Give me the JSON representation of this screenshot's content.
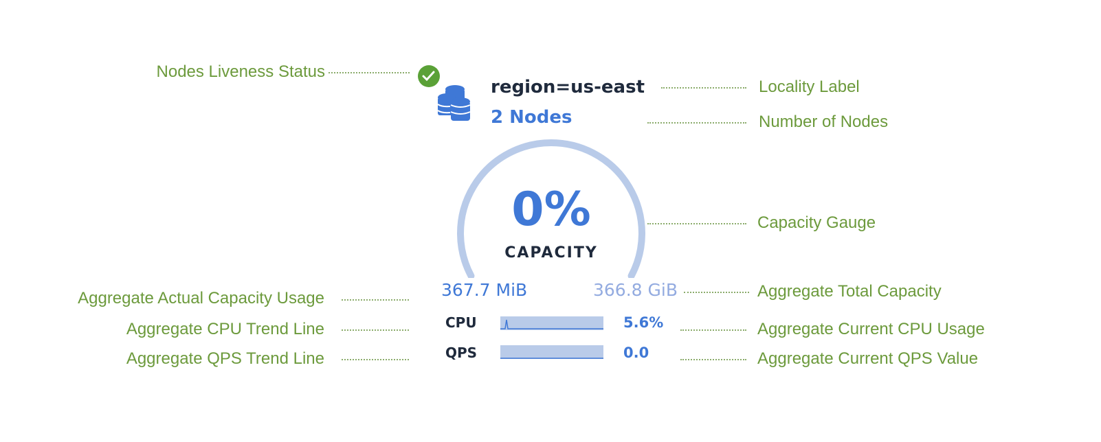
{
  "annotations": {
    "liveness": "Nodes Liveness Status",
    "locality": "Locality Label",
    "node_count": "Number of Nodes",
    "gauge": "Capacity Gauge",
    "actual_usage": "Aggregate Actual Capacity Usage",
    "total_capacity": "Aggregate Total Capacity",
    "cpu_trend": "Aggregate CPU Trend Line",
    "cpu_current": "Aggregate Current CPU Usage",
    "qps_trend": "Aggregate QPS Trend Line",
    "qps_current": "Aggregate Current QPS Value"
  },
  "widget": {
    "status": "live",
    "status_icon": "check-circle-icon",
    "node_icon": "database-icon",
    "locality": "region=us-east",
    "nodes": "2 Nodes",
    "capacity_percent": "0%",
    "capacity_label": "CAPACITY",
    "capacity_fraction": 0.001,
    "used": "367.7 MiB",
    "total": "366.8 GiB",
    "cpu_label": "CPU",
    "cpu_value": "5.6%",
    "qps_label": "QPS",
    "qps_value": "0.0"
  },
  "colors": {
    "annotation": "#6c9a3c",
    "accent": "#3f78d6",
    "gauge_track": "#b9cbe9",
    "status_ok": "#5aa137"
  }
}
